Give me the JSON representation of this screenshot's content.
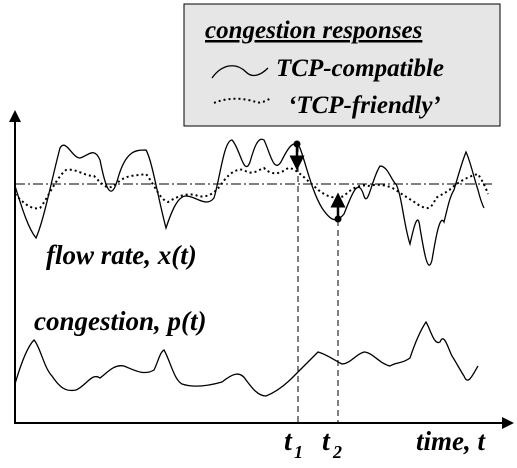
{
  "legend": {
    "title": "congestion responses",
    "entries": [
      {
        "label": "TCP-compatible",
        "style": "solid"
      },
      {
        "label": "‘TCP-friendly’",
        "style": "dotted"
      }
    ],
    "background": "#e6e6e6"
  },
  "labels": {
    "flow_rate": "flow rate, x(t)",
    "congestion": "congestion, p(t)",
    "time_axis": "time, t",
    "t1_base": "t",
    "t1_sub": "1",
    "t2_base": "t",
    "t2_sub": "2"
  }
}
